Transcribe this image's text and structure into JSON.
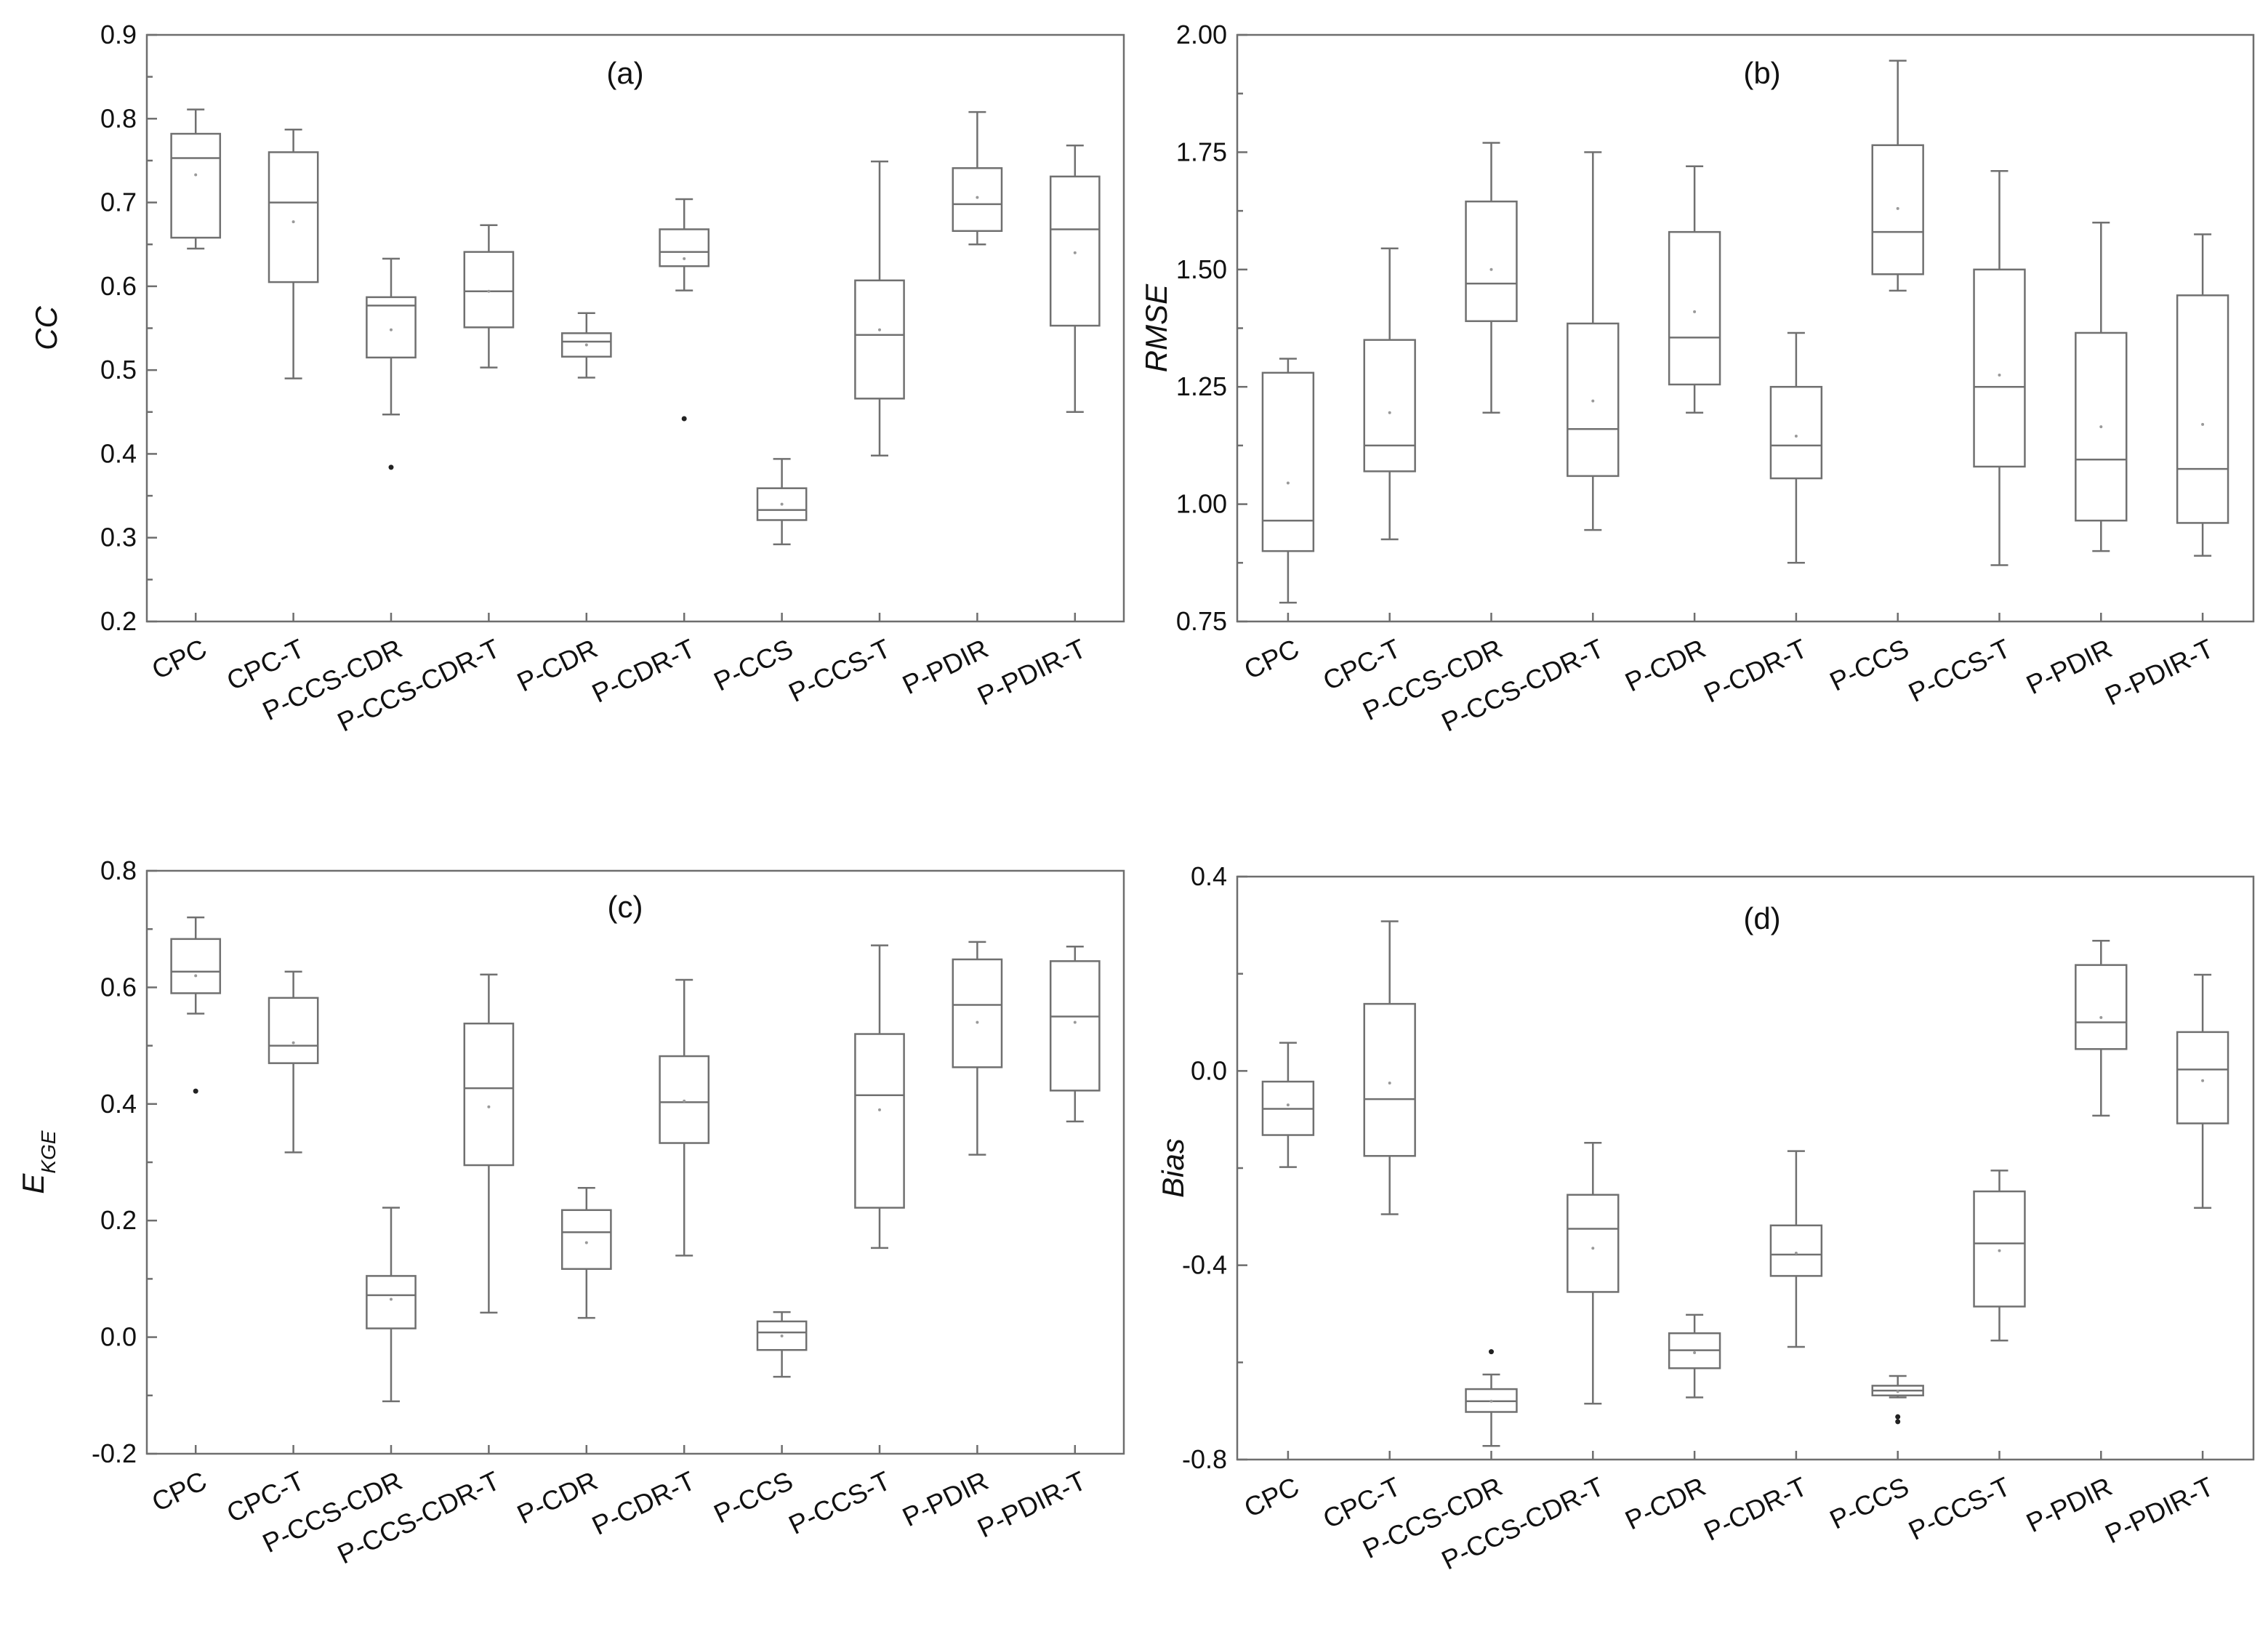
{
  "chart_data": [
    {
      "type": "boxplot",
      "panel": "(a)",
      "ylabel": "CC",
      "ylim": [
        0.2,
        0.9
      ],
      "yticks": [
        "0.2",
        "0.3",
        "0.4",
        "0.5",
        "0.6",
        "0.7",
        "0.8",
        "0.9"
      ],
      "categories": [
        "CPC",
        "CPC-T",
        "P-CCS-CDR",
        "P-CCS-CDR-T",
        "P-CDR",
        "P-CDR-T",
        "P-CCS",
        "P-CCS-T",
        "P-PDIR",
        "P-PDIR-T"
      ],
      "boxes": [
        {
          "whislo": 0.645,
          "q1": 0.658,
          "med": 0.753,
          "q3": 0.782,
          "whishi": 0.811,
          "mean": 0.733,
          "fliers": []
        },
        {
          "whislo": 0.49,
          "q1": 0.605,
          "med": 0.7,
          "q3": 0.76,
          "whishi": 0.787,
          "mean": 0.677,
          "fliers": []
        },
        {
          "whislo": 0.447,
          "q1": 0.515,
          "med": 0.577,
          "q3": 0.587,
          "whishi": 0.633,
          "mean": 0.548,
          "fliers": [
            0.384
          ]
        },
        {
          "whislo": 0.503,
          "q1": 0.551,
          "med": 0.594,
          "q3": 0.641,
          "whishi": 0.673,
          "mean": 0.594,
          "fliers": []
        },
        {
          "whislo": 0.491,
          "q1": 0.516,
          "med": 0.534,
          "q3": 0.544,
          "whishi": 0.568,
          "mean": 0.53,
          "fliers": []
        },
        {
          "whislo": 0.595,
          "q1": 0.624,
          "med": 0.641,
          "q3": 0.668,
          "whishi": 0.704,
          "mean": 0.633,
          "fliers": [
            0.442
          ]
        },
        {
          "whislo": 0.292,
          "q1": 0.321,
          "med": 0.333,
          "q3": 0.359,
          "whishi": 0.394,
          "mean": 0.34,
          "fliers": []
        },
        {
          "whislo": 0.398,
          "q1": 0.466,
          "med": 0.542,
          "q3": 0.607,
          "whishi": 0.749,
          "mean": 0.548,
          "fliers": []
        },
        {
          "whislo": 0.65,
          "q1": 0.666,
          "med": 0.698,
          "q3": 0.741,
          "whishi": 0.808,
          "mean": 0.706,
          "fliers": []
        },
        {
          "whislo": 0.45,
          "q1": 0.553,
          "med": 0.668,
          "q3": 0.731,
          "whishi": 0.768,
          "mean": 0.64,
          "fliers": []
        }
      ]
    },
    {
      "type": "boxplot",
      "panel": "(b)",
      "ylabel": "RMSE",
      "ylim": [
        0.75,
        2.0
      ],
      "yticks": [
        "0.75",
        "1.00",
        "1.25",
        "1.50",
        "1.75",
        "2.00"
      ],
      "categories": [
        "CPC",
        "CPC-T",
        "P-CCS-CDR",
        "P-CCS-CDR-T",
        "P-CDR",
        "P-CDR-T",
        "P-CCS",
        "P-CCS-T",
        "P-PDIR",
        "P-PDIR-T"
      ],
      "boxes": [
        {
          "whislo": 0.79,
          "q1": 0.9,
          "med": 0.965,
          "q3": 1.28,
          "whishi": 1.31,
          "mean": 1.045,
          "fliers": []
        },
        {
          "whislo": 0.925,
          "q1": 1.07,
          "med": 1.125,
          "q3": 1.35,
          "whishi": 1.545,
          "mean": 1.195,
          "fliers": []
        },
        {
          "whislo": 1.195,
          "q1": 1.39,
          "med": 1.47,
          "q3": 1.645,
          "whishi": 1.77,
          "mean": 1.5,
          "fliers": []
        },
        {
          "whislo": 0.945,
          "q1": 1.06,
          "med": 1.16,
          "q3": 1.385,
          "whishi": 1.75,
          "mean": 1.22,
          "fliers": []
        },
        {
          "whislo": 1.195,
          "q1": 1.255,
          "med": 1.355,
          "q3": 1.58,
          "whishi": 1.72,
          "mean": 1.41,
          "fliers": []
        },
        {
          "whislo": 0.875,
          "q1": 1.055,
          "med": 1.125,
          "q3": 1.25,
          "whishi": 1.365,
          "mean": 1.145,
          "fliers": []
        },
        {
          "whislo": 1.455,
          "q1": 1.49,
          "med": 1.58,
          "q3": 1.765,
          "whishi": 1.945,
          "mean": 1.63,
          "fliers": []
        },
        {
          "whislo": 0.87,
          "q1": 1.08,
          "med": 1.25,
          "q3": 1.5,
          "whishi": 1.71,
          "mean": 1.275,
          "fliers": []
        },
        {
          "whislo": 0.9,
          "q1": 0.965,
          "med": 1.095,
          "q3": 1.365,
          "whishi": 1.6,
          "mean": 1.165,
          "fliers": []
        },
        {
          "whislo": 0.89,
          "q1": 0.96,
          "med": 1.075,
          "q3": 1.445,
          "whishi": 1.575,
          "mean": 1.17,
          "fliers": []
        }
      ]
    },
    {
      "type": "boxplot",
      "panel": "(c)",
      "ylabel": "E",
      "ylabel_sub": "KGE",
      "ylim": [
        -0.2,
        0.8
      ],
      "yticks": [
        "-0.2",
        "0.0",
        "0.2",
        "0.4",
        "0.6",
        "0.8"
      ],
      "categories": [
        "CPC",
        "CPC-T",
        "P-CCS-CDR",
        "P-CCS-CDR-T",
        "P-CDR",
        "P-CDR-T",
        "P-CCS",
        "P-CCS-T",
        "P-PDIR",
        "P-PDIR-T"
      ],
      "boxes": [
        {
          "whislo": 0.555,
          "q1": 0.59,
          "med": 0.627,
          "q3": 0.683,
          "whishi": 0.72,
          "mean": 0.62,
          "fliers": [
            0.422
          ]
        },
        {
          "whislo": 0.317,
          "q1": 0.47,
          "med": 0.5,
          "q3": 0.582,
          "whishi": 0.627,
          "mean": 0.505,
          "fliers": []
        },
        {
          "whislo": -0.11,
          "q1": 0.015,
          "med": 0.072,
          "q3": 0.105,
          "whishi": 0.222,
          "mean": 0.065,
          "fliers": []
        },
        {
          "whislo": 0.042,
          "q1": 0.295,
          "med": 0.427,
          "q3": 0.538,
          "whishi": 0.622,
          "mean": 0.395,
          "fliers": []
        },
        {
          "whislo": 0.033,
          "q1": 0.117,
          "med": 0.18,
          "q3": 0.218,
          "whishi": 0.256,
          "mean": 0.162,
          "fliers": []
        },
        {
          "whislo": 0.14,
          "q1": 0.333,
          "med": 0.403,
          "q3": 0.482,
          "whishi": 0.613,
          "mean": 0.405,
          "fliers": []
        },
        {
          "whislo": -0.068,
          "q1": -0.022,
          "med": 0.008,
          "q3": 0.027,
          "whishi": 0.043,
          "mean": 0.002,
          "fliers": []
        },
        {
          "whislo": 0.153,
          "q1": 0.222,
          "med": 0.415,
          "q3": 0.52,
          "whishi": 0.672,
          "mean": 0.39,
          "fliers": []
        },
        {
          "whislo": 0.313,
          "q1": 0.463,
          "med": 0.57,
          "q3": 0.648,
          "whishi": 0.678,
          "mean": 0.54,
          "fliers": []
        },
        {
          "whislo": 0.37,
          "q1": 0.423,
          "med": 0.55,
          "q3": 0.645,
          "whishi": 0.67,
          "mean": 0.54,
          "fliers": []
        }
      ]
    },
    {
      "type": "boxplot",
      "panel": "(d)",
      "ylabel": "Bias",
      "ylim": [
        -0.8,
        0.4
      ],
      "yticks": [
        "-0.8",
        "-0.4",
        "0.0",
        "0.4"
      ],
      "categories": [
        "CPC",
        "CPC-T",
        "P-CCS-CDR",
        "P-CCS-CDR-T",
        "P-CDR",
        "P-CDR-T",
        "P-CCS",
        "P-CCS-T",
        "P-PDIR",
        "P-PDIR-T"
      ],
      "boxes": [
        {
          "whislo": -0.198,
          "q1": -0.132,
          "med": -0.078,
          "q3": -0.022,
          "whishi": 0.058,
          "mean": -0.07,
          "fliers": []
        },
        {
          "whislo": -0.295,
          "q1": -0.175,
          "med": -0.058,
          "q3": 0.138,
          "whishi": 0.308,
          "mean": -0.025,
          "fliers": []
        },
        {
          "whislo": -0.772,
          "q1": -0.702,
          "med": -0.68,
          "q3": -0.655,
          "whishi": -0.625,
          "mean": -0.68,
          "fliers": [
            -0.578
          ]
        },
        {
          "whislo": -0.685,
          "q1": -0.455,
          "med": -0.325,
          "q3": -0.255,
          "whishi": -0.148,
          "mean": -0.365,
          "fliers": []
        },
        {
          "whislo": -0.672,
          "q1": -0.612,
          "med": -0.575,
          "q3": -0.54,
          "whishi": -0.502,
          "mean": -0.58,
          "fliers": []
        },
        {
          "whislo": -0.568,
          "q1": -0.422,
          "med": -0.378,
          "q3": -0.318,
          "whishi": -0.165,
          "mean": -0.375,
          "fliers": []
        },
        {
          "whislo": -0.672,
          "q1": -0.668,
          "med": -0.658,
          "q3": -0.648,
          "whishi": -0.628,
          "mean": -0.66,
          "fliers": [
            -0.712,
            -0.722
          ]
        },
        {
          "whislo": -0.555,
          "q1": -0.485,
          "med": -0.355,
          "q3": -0.248,
          "whishi": -0.205,
          "mean": -0.37,
          "fliers": []
        },
        {
          "whislo": -0.092,
          "q1": 0.045,
          "med": 0.1,
          "q3": 0.218,
          "whishi": 0.268,
          "mean": 0.11,
          "fliers": []
        },
        {
          "whislo": -0.282,
          "q1": -0.108,
          "med": 0.003,
          "q3": 0.08,
          "whishi": 0.198,
          "mean": -0.02,
          "fliers": []
        }
      ]
    }
  ]
}
